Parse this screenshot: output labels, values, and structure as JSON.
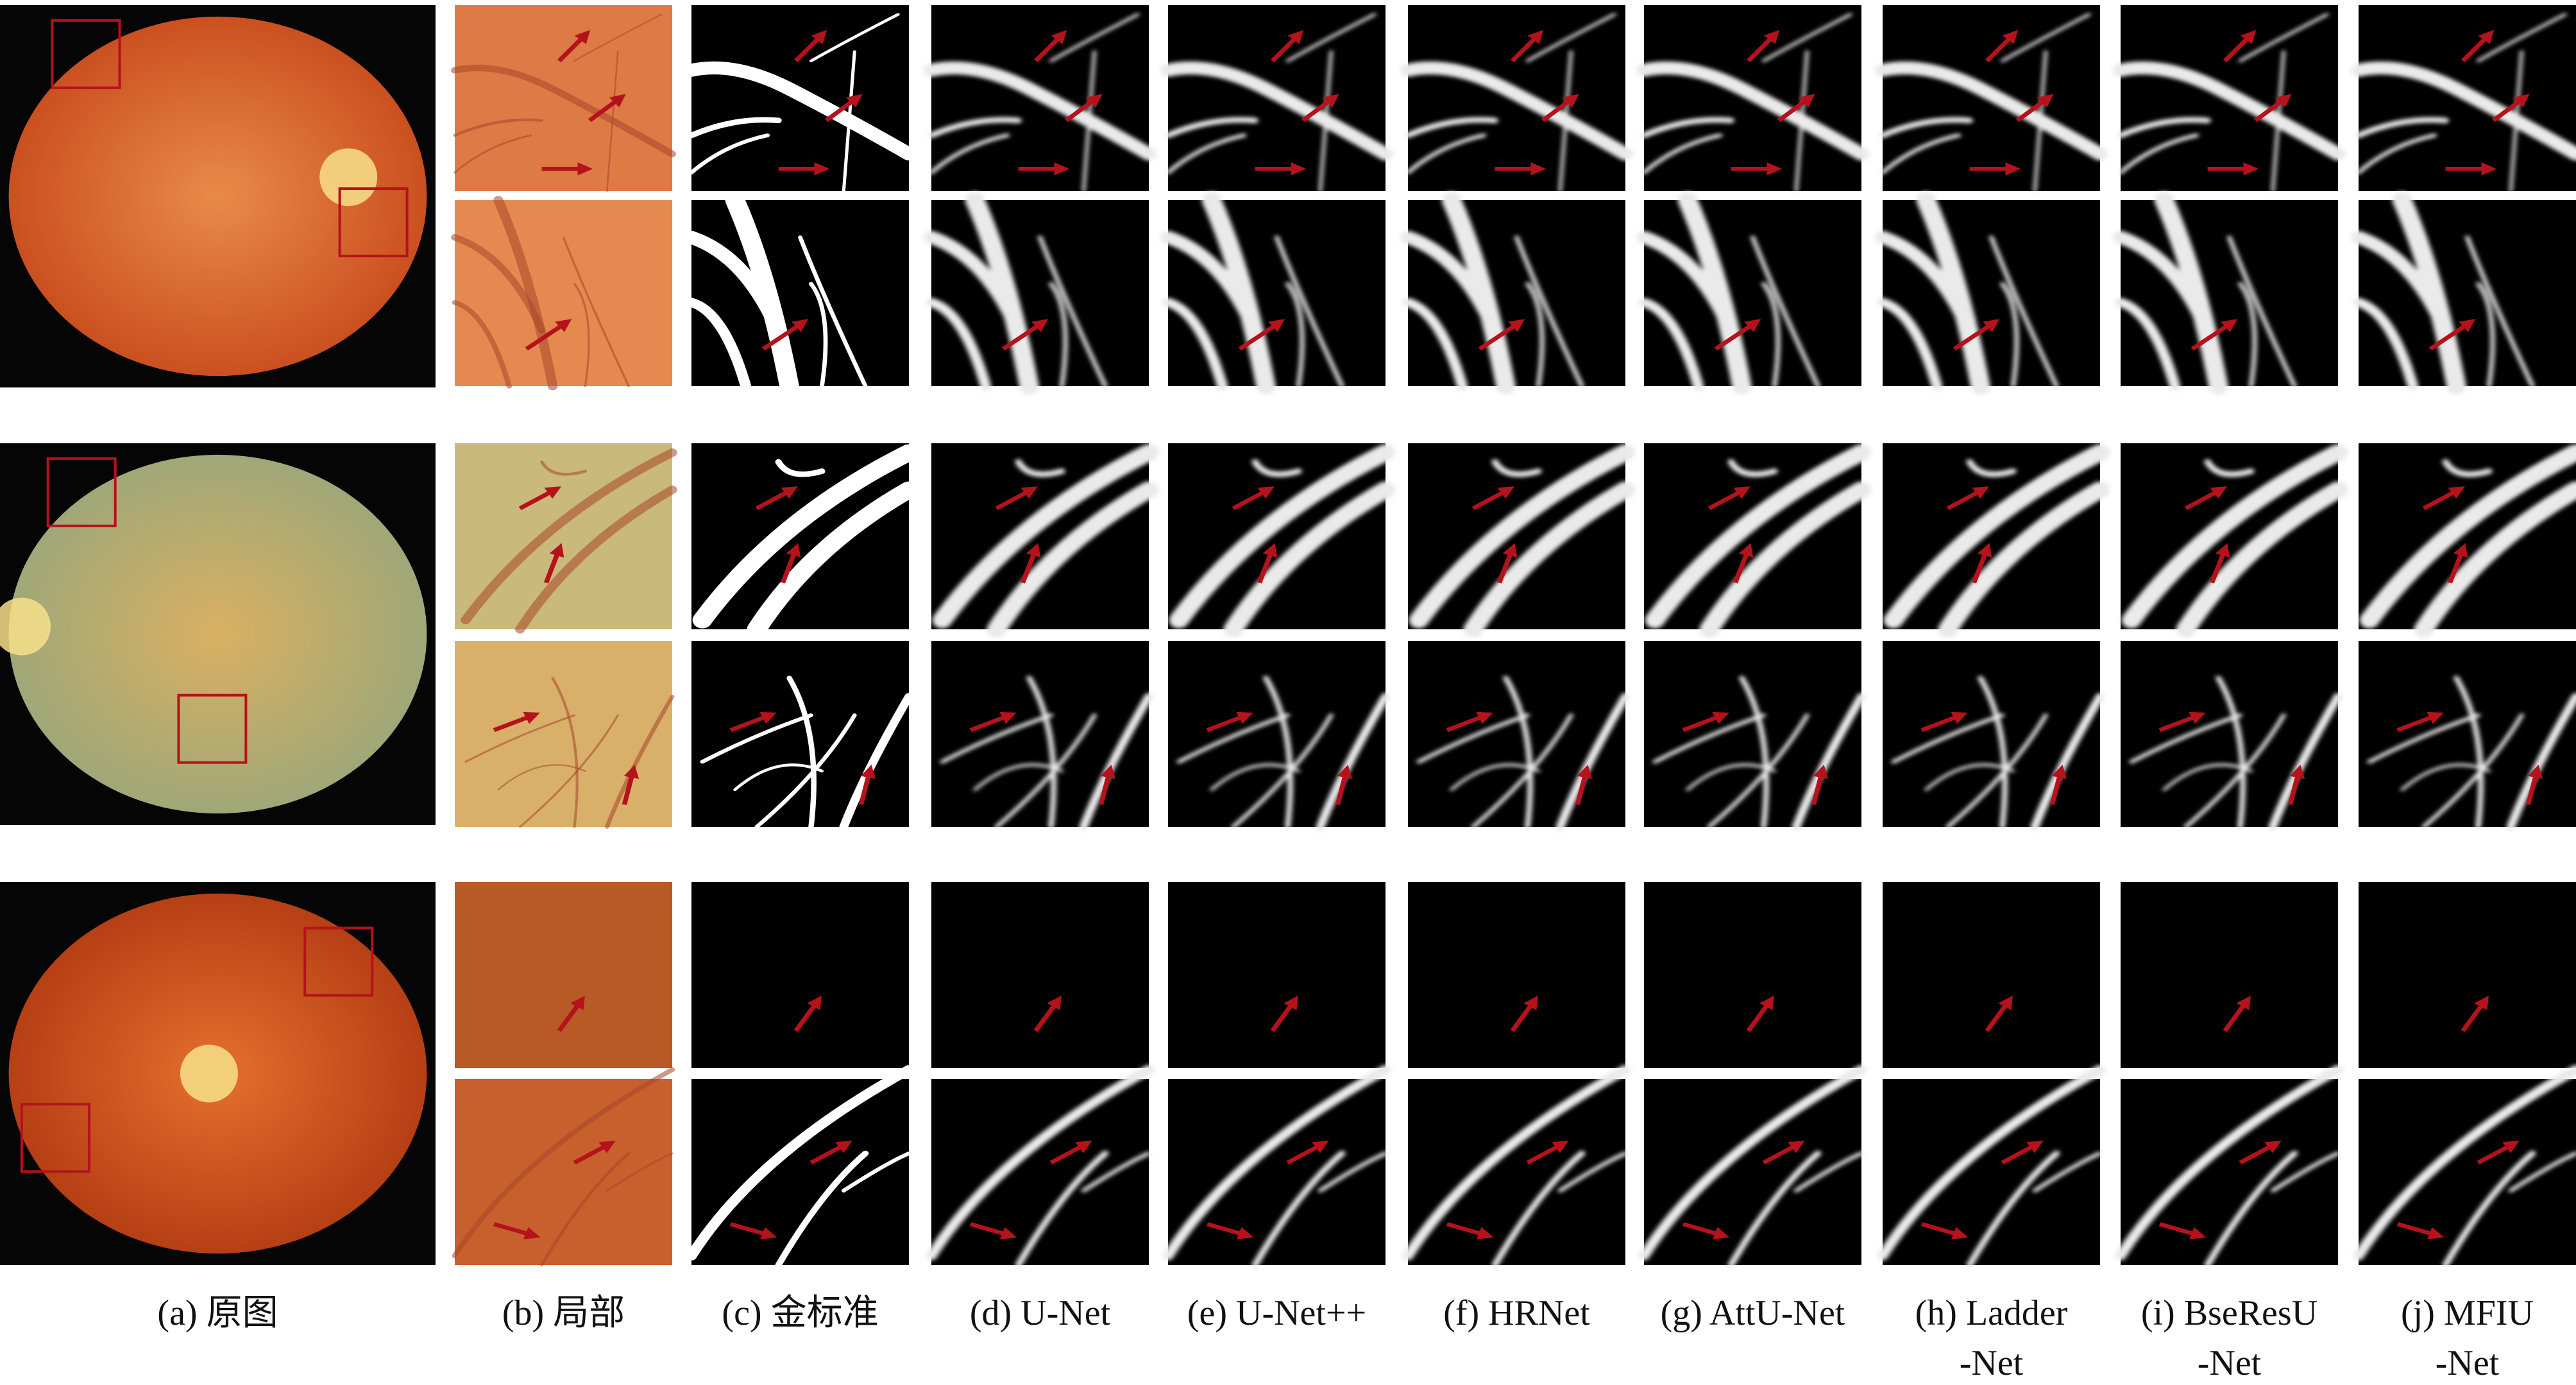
{
  "columns": [
    {
      "caption": [
        "(a) 原图"
      ]
    },
    {
      "caption": [
        "(b) 局部"
      ]
    },
    {
      "caption": [
        "(c) 金标准"
      ]
    },
    {
      "caption": [
        "(d) U-Net"
      ]
    },
    {
      "caption": [
        "(e) U-Net++"
      ]
    },
    {
      "caption": [
        "(f) HRNet"
      ]
    },
    {
      "caption": [
        "(g) AttU-Net"
      ]
    },
    {
      "caption": [
        "(h) Ladder",
        "-Net"
      ]
    },
    {
      "caption": [
        "(i) BseResU",
        "-Net"
      ]
    },
    {
      "caption": [
        "(j) MFIU",
        "-Net"
      ]
    }
  ]
}
